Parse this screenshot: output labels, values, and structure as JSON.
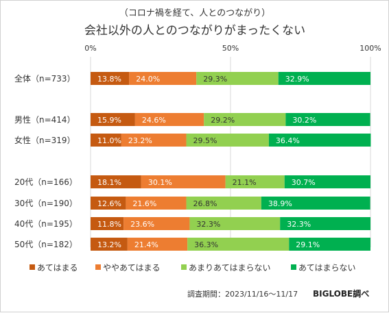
{
  "chart_data": {
    "type": "bar",
    "stacked": "percent",
    "orientation": "horizontal",
    "subtitle": "（コロナ禍を経て、人とのつながり）",
    "title": "会社以外の人とのつながりがまったくない",
    "xticks": [
      "0%",
      "50%",
      "100%"
    ],
    "xlim": [
      0,
      100
    ],
    "categories": [
      "全体（n=733）",
      "男性（n=414）",
      "女性（n=319）",
      "20代（n=166）",
      "30代（n=190）",
      "40代（n=195）",
      "50代（n=182）"
    ],
    "series": [
      {
        "name": "あてはまる",
        "color": "#c55a11",
        "values": [
          13.8,
          15.9,
          11.0,
          18.1,
          12.6,
          11.8,
          13.2
        ]
      },
      {
        "name": "ややあてはまる",
        "color": "#ed7d31",
        "values": [
          24.0,
          24.6,
          23.2,
          30.1,
          21.6,
          23.6,
          21.4
        ]
      },
      {
        "name": "あまりあてはまらない",
        "color": "#92d050",
        "values": [
          29.3,
          29.2,
          29.5,
          21.1,
          26.8,
          32.3,
          36.3
        ]
      },
      {
        "name": "あてはまらない",
        "color": "#00b050",
        "values": [
          32.9,
          30.2,
          36.4,
          30.7,
          38.9,
          32.3,
          29.1
        ]
      }
    ],
    "grid": true,
    "legend_position": "bottom"
  },
  "footer": {
    "survey_period": "調査期間：2023/11/16～11/17",
    "brand": "BIGLOBE調べ"
  }
}
